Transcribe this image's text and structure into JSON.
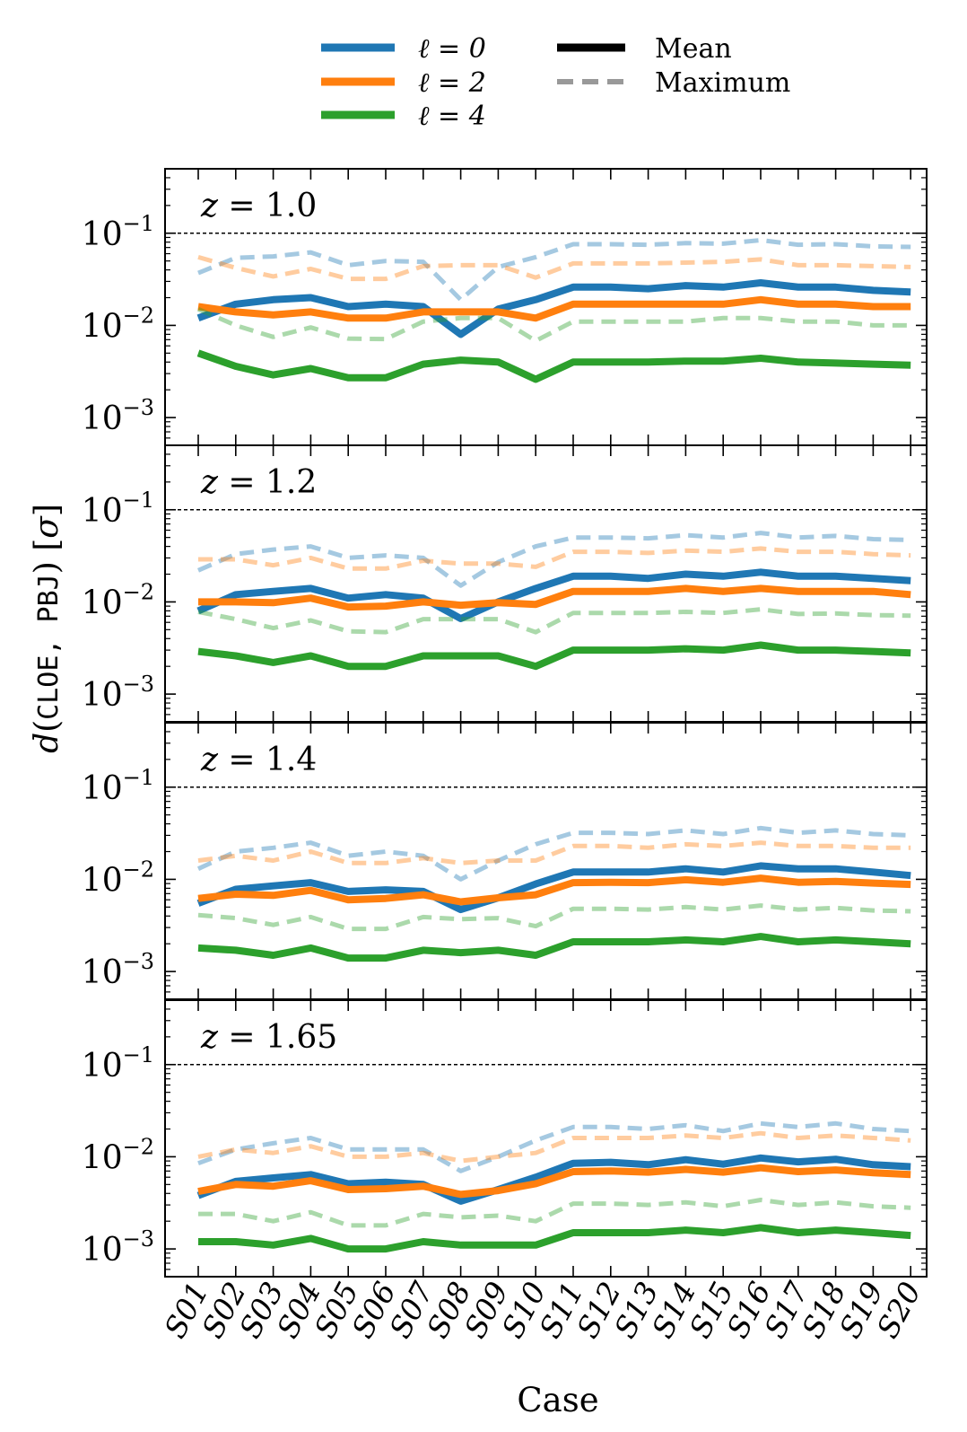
{
  "chart_data": {
    "type": "line",
    "ylabel_prefix": "d",
    "ylabel_codes": "CLOE, PBJ",
    "ylabel_unit": "σ",
    "xlabel": "Case",
    "yscale": "log",
    "ylim": [
      0.0005,
      0.5
    ],
    "reference_line": 0.1,
    "categories": [
      "S01",
      "S02",
      "S03",
      "S04",
      "S05",
      "S06",
      "S07",
      "S08",
      "S09",
      "S10",
      "S11",
      "S12",
      "S13",
      "S14",
      "S15",
      "S16",
      "S17",
      "S18",
      "S19",
      "S20"
    ],
    "yticks": [
      {
        "base": "10",
        "exp": "−1"
      },
      {
        "base": "10",
        "exp": "−2"
      },
      {
        "base": "10",
        "exp": "−3"
      }
    ],
    "legend": {
      "location": "top-center",
      "entries": [
        {
          "label": "ℓ = 0",
          "color": "#1f77b4",
          "style": "solid"
        },
        {
          "label": "ℓ = 2",
          "color": "#ff7f0e",
          "style": "solid"
        },
        {
          "label": "ℓ = 4",
          "color": "#2ca02c",
          "style": "solid"
        },
        {
          "label": "Mean",
          "color": "#000000",
          "style": "solid"
        },
        {
          "label": "Maximum",
          "color": "#999999",
          "style": "dashed"
        }
      ]
    },
    "multipole_colors": {
      "0": "#1f77b4",
      "2": "#ff7f0e",
      "4": "#2ca02c"
    },
    "panels": [
      {
        "label": "z = 1.0",
        "series": [
          {
            "name": "ℓ = 0 max",
            "ell": 0,
            "stat": "max",
            "values": [
              0.037,
              0.054,
              0.056,
              0.062,
              0.045,
              0.05,
              0.049,
              0.019,
              0.043,
              0.055,
              0.076,
              0.076,
              0.075,
              0.078,
              0.077,
              0.084,
              0.075,
              0.076,
              0.072,
              0.071
            ]
          },
          {
            "name": "ℓ = 2 max",
            "ell": 2,
            "stat": "max",
            "values": [
              0.055,
              0.042,
              0.034,
              0.041,
              0.032,
              0.032,
              0.044,
              0.045,
              0.045,
              0.033,
              0.047,
              0.047,
              0.047,
              0.048,
              0.049,
              0.052,
              0.045,
              0.045,
              0.044,
              0.043
            ]
          },
          {
            "name": "ℓ = 0 mean",
            "ell": 0,
            "stat": "mean",
            "values": [
              0.012,
              0.017,
              0.019,
              0.02,
              0.016,
              0.017,
              0.016,
              0.008,
              0.015,
              0.019,
              0.026,
              0.026,
              0.025,
              0.027,
              0.026,
              0.029,
              0.026,
              0.026,
              0.024,
              0.023
            ]
          },
          {
            "name": "ℓ = 2 mean",
            "ell": 2,
            "stat": "mean",
            "values": [
              0.016,
              0.014,
              0.013,
              0.014,
              0.012,
              0.012,
              0.014,
              0.014,
              0.014,
              0.012,
              0.017,
              0.017,
              0.017,
              0.017,
              0.017,
              0.019,
              0.017,
              0.017,
              0.016,
              0.016
            ]
          },
          {
            "name": "ℓ = 4 max",
            "ell": 4,
            "stat": "max",
            "values": [
              0.015,
              0.01,
              0.0075,
              0.0095,
              0.0072,
              0.0071,
              0.011,
              0.012,
              0.012,
              0.0068,
              0.011,
              0.011,
              0.011,
              0.011,
              0.012,
              0.012,
              0.011,
              0.011,
              0.01,
              0.01
            ]
          },
          {
            "name": "ℓ = 4 mean",
            "ell": 4,
            "stat": "mean",
            "values": [
              0.005,
              0.0036,
              0.0029,
              0.0034,
              0.0027,
              0.0027,
              0.0038,
              0.0042,
              0.004,
              0.0026,
              0.004,
              0.004,
              0.004,
              0.0041,
              0.0041,
              0.0044,
              0.004,
              0.0039,
              0.0038,
              0.0037
            ]
          }
        ]
      },
      {
        "label": "z = 1.2",
        "series": [
          {
            "name": "ℓ = 0 max",
            "ell": 0,
            "stat": "max",
            "values": [
              0.022,
              0.033,
              0.037,
              0.04,
              0.03,
              0.032,
              0.03,
              0.015,
              0.027,
              0.04,
              0.05,
              0.05,
              0.049,
              0.053,
              0.05,
              0.056,
              0.05,
              0.052,
              0.048,
              0.047
            ]
          },
          {
            "name": "ℓ = 2 max",
            "ell": 2,
            "stat": "max",
            "values": [
              0.029,
              0.029,
              0.025,
              0.03,
              0.023,
              0.023,
              0.028,
              0.026,
              0.026,
              0.024,
              0.035,
              0.035,
              0.034,
              0.036,
              0.035,
              0.038,
              0.035,
              0.035,
              0.033,
              0.032
            ]
          },
          {
            "name": "ℓ = 0 mean",
            "ell": 0,
            "stat": "mean",
            "values": [
              0.008,
              0.012,
              0.013,
              0.014,
              0.011,
              0.012,
              0.011,
              0.0066,
              0.01,
              0.014,
              0.019,
              0.019,
              0.018,
              0.02,
              0.019,
              0.021,
              0.019,
              0.019,
              0.018,
              0.017
            ]
          },
          {
            "name": "ℓ = 2 mean",
            "ell": 2,
            "stat": "mean",
            "values": [
              0.01,
              0.01,
              0.0098,
              0.011,
              0.0088,
              0.009,
              0.01,
              0.0092,
              0.0098,
              0.0094,
              0.013,
              0.013,
              0.013,
              0.014,
              0.013,
              0.014,
              0.013,
              0.013,
              0.013,
              0.012
            ]
          },
          {
            "name": "ℓ = 4 max",
            "ell": 4,
            "stat": "max",
            "values": [
              0.0078,
              0.0065,
              0.0052,
              0.0063,
              0.0048,
              0.0047,
              0.0065,
              0.0065,
              0.0065,
              0.0047,
              0.0076,
              0.0076,
              0.0076,
              0.0078,
              0.0076,
              0.0083,
              0.0074,
              0.0075,
              0.0072,
              0.0071
            ]
          },
          {
            "name": "ℓ = 4 mean",
            "ell": 4,
            "stat": "mean",
            "values": [
              0.0029,
              0.0026,
              0.0022,
              0.0026,
              0.002,
              0.002,
              0.0026,
              0.0026,
              0.0026,
              0.002,
              0.003,
              0.003,
              0.003,
              0.0031,
              0.003,
              0.0034,
              0.003,
              0.003,
              0.0029,
              0.0028
            ]
          }
        ]
      },
      {
        "label": "z = 1.4",
        "series": [
          {
            "name": "ℓ = 0 max",
            "ell": 0,
            "stat": "max",
            "values": [
              0.013,
              0.02,
              0.022,
              0.025,
              0.018,
              0.02,
              0.018,
              0.01,
              0.016,
              0.024,
              0.032,
              0.032,
              0.031,
              0.034,
              0.031,
              0.036,
              0.032,
              0.034,
              0.031,
              0.03
            ]
          },
          {
            "name": "ℓ = 2 max",
            "ell": 2,
            "stat": "max",
            "values": [
              0.016,
              0.018,
              0.016,
              0.02,
              0.015,
              0.015,
              0.017,
              0.015,
              0.016,
              0.016,
              0.023,
              0.023,
              0.022,
              0.024,
              0.023,
              0.025,
              0.023,
              0.023,
              0.022,
              0.022
            ]
          },
          {
            "name": "ℓ = 0 mean",
            "ell": 0,
            "stat": "mean",
            "values": [
              0.0055,
              0.0078,
              0.0085,
              0.0092,
              0.0074,
              0.0077,
              0.0074,
              0.0047,
              0.0063,
              0.0089,
              0.012,
              0.012,
              0.012,
              0.013,
              0.012,
              0.014,
              0.013,
              0.013,
              0.012,
              0.011
            ]
          },
          {
            "name": "ℓ = 2 mean",
            "ell": 2,
            "stat": "mean",
            "values": [
              0.0062,
              0.0069,
              0.0067,
              0.0076,
              0.006,
              0.0062,
              0.0068,
              0.0057,
              0.0063,
              0.0068,
              0.0092,
              0.0093,
              0.0092,
              0.0099,
              0.0093,
              0.0103,
              0.0093,
              0.0095,
              0.0091,
              0.0088
            ]
          },
          {
            "name": "ℓ = 4 max",
            "ell": 4,
            "stat": "max",
            "values": [
              0.0041,
              0.0038,
              0.0032,
              0.0039,
              0.0029,
              0.0029,
              0.0039,
              0.0037,
              0.0038,
              0.0031,
              0.0048,
              0.0048,
              0.0047,
              0.005,
              0.0047,
              0.0052,
              0.0047,
              0.0049,
              0.0046,
              0.0045
            ]
          },
          {
            "name": "ℓ = 4 mean",
            "ell": 4,
            "stat": "mean",
            "values": [
              0.0018,
              0.0017,
              0.0015,
              0.0018,
              0.0014,
              0.0014,
              0.0017,
              0.0016,
              0.0017,
              0.0015,
              0.0021,
              0.0021,
              0.0021,
              0.0022,
              0.0021,
              0.0024,
              0.0021,
              0.0022,
              0.0021,
              0.002
            ]
          }
        ]
      },
      {
        "label": "z = 1.65",
        "series": [
          {
            "name": "ℓ = 0 max",
            "ell": 0,
            "stat": "max",
            "values": [
              0.0085,
              0.012,
              0.014,
              0.016,
              0.012,
              0.012,
              0.012,
              0.007,
              0.01,
              0.015,
              0.021,
              0.021,
              0.02,
              0.022,
              0.019,
              0.023,
              0.021,
              0.023,
              0.02,
              0.019
            ]
          },
          {
            "name": "ℓ = 2 max",
            "ell": 2,
            "stat": "max",
            "values": [
              0.01,
              0.012,
              0.011,
              0.013,
              0.01,
              0.01,
              0.011,
              0.009,
              0.01,
              0.011,
              0.016,
              0.016,
              0.016,
              0.017,
              0.016,
              0.018,
              0.016,
              0.017,
              0.016,
              0.015
            ]
          },
          {
            "name": "ℓ = 0 mean",
            "ell": 0,
            "stat": "mean",
            "values": [
              0.0038,
              0.0054,
              0.0059,
              0.0064,
              0.0051,
              0.0053,
              0.005,
              0.0033,
              0.0044,
              0.006,
              0.0085,
              0.0087,
              0.0082,
              0.0093,
              0.0083,
              0.0097,
              0.0088,
              0.0094,
              0.0082,
              0.0078
            ]
          },
          {
            "name": "ℓ = 2 mean",
            "ell": 2,
            "stat": "mean",
            "values": [
              0.0042,
              0.005,
              0.0048,
              0.0055,
              0.0044,
              0.0045,
              0.0048,
              0.0039,
              0.0043,
              0.0051,
              0.0069,
              0.007,
              0.0068,
              0.0073,
              0.0068,
              0.0076,
              0.0069,
              0.0072,
              0.0067,
              0.0064
            ]
          },
          {
            "name": "ℓ = 4 max",
            "ell": 4,
            "stat": "max",
            "values": [
              0.0024,
              0.0024,
              0.002,
              0.0025,
              0.0018,
              0.0018,
              0.0024,
              0.0022,
              0.0023,
              0.002,
              0.0031,
              0.0031,
              0.003,
              0.0032,
              0.0029,
              0.0034,
              0.003,
              0.0032,
              0.0029,
              0.0028
            ]
          },
          {
            "name": "ℓ = 4 mean",
            "ell": 4,
            "stat": "mean",
            "values": [
              0.0012,
              0.0012,
              0.0011,
              0.0013,
              0.001,
              0.001,
              0.0012,
              0.0011,
              0.0011,
              0.0011,
              0.0015,
              0.0015,
              0.0015,
              0.0016,
              0.0015,
              0.0017,
              0.0015,
              0.0016,
              0.0015,
              0.0014
            ]
          }
        ]
      }
    ]
  }
}
